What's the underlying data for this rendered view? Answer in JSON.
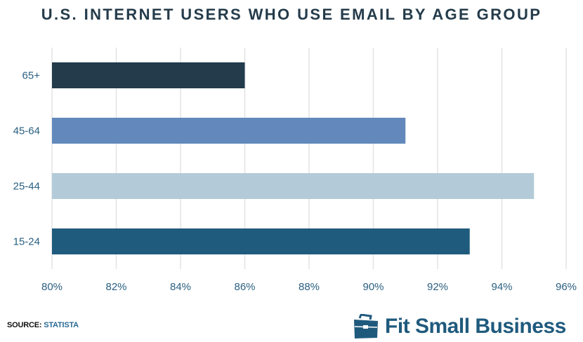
{
  "chart_data": {
    "type": "bar",
    "orientation": "horizontal",
    "title": "U.S. INTERNET USERS WHO USE EMAIL BY AGE GROUP",
    "categories": [
      "65+",
      "45-64",
      "25-44",
      "15-24"
    ],
    "values": [
      86,
      91,
      95,
      93
    ],
    "colors": [
      "#233b4b",
      "#6389bc",
      "#b3cbd8",
      "#1f5b7d"
    ],
    "xlim": [
      80,
      96
    ],
    "xticks": [
      "80%",
      "82%",
      "84%",
      "86%",
      "88%",
      "90%",
      "92%",
      "94%",
      "96%"
    ],
    "xtick_values": [
      80,
      82,
      84,
      86,
      88,
      90,
      92,
      94,
      96
    ],
    "grid": true,
    "xlabel": "",
    "ylabel": ""
  },
  "footer": {
    "source_label": "SOURCE:",
    "source_value": "STATISTA",
    "brand": "Fit Small Business",
    "brand_icon": "briefcase-icon",
    "brand_color": "#1f5a7d"
  }
}
